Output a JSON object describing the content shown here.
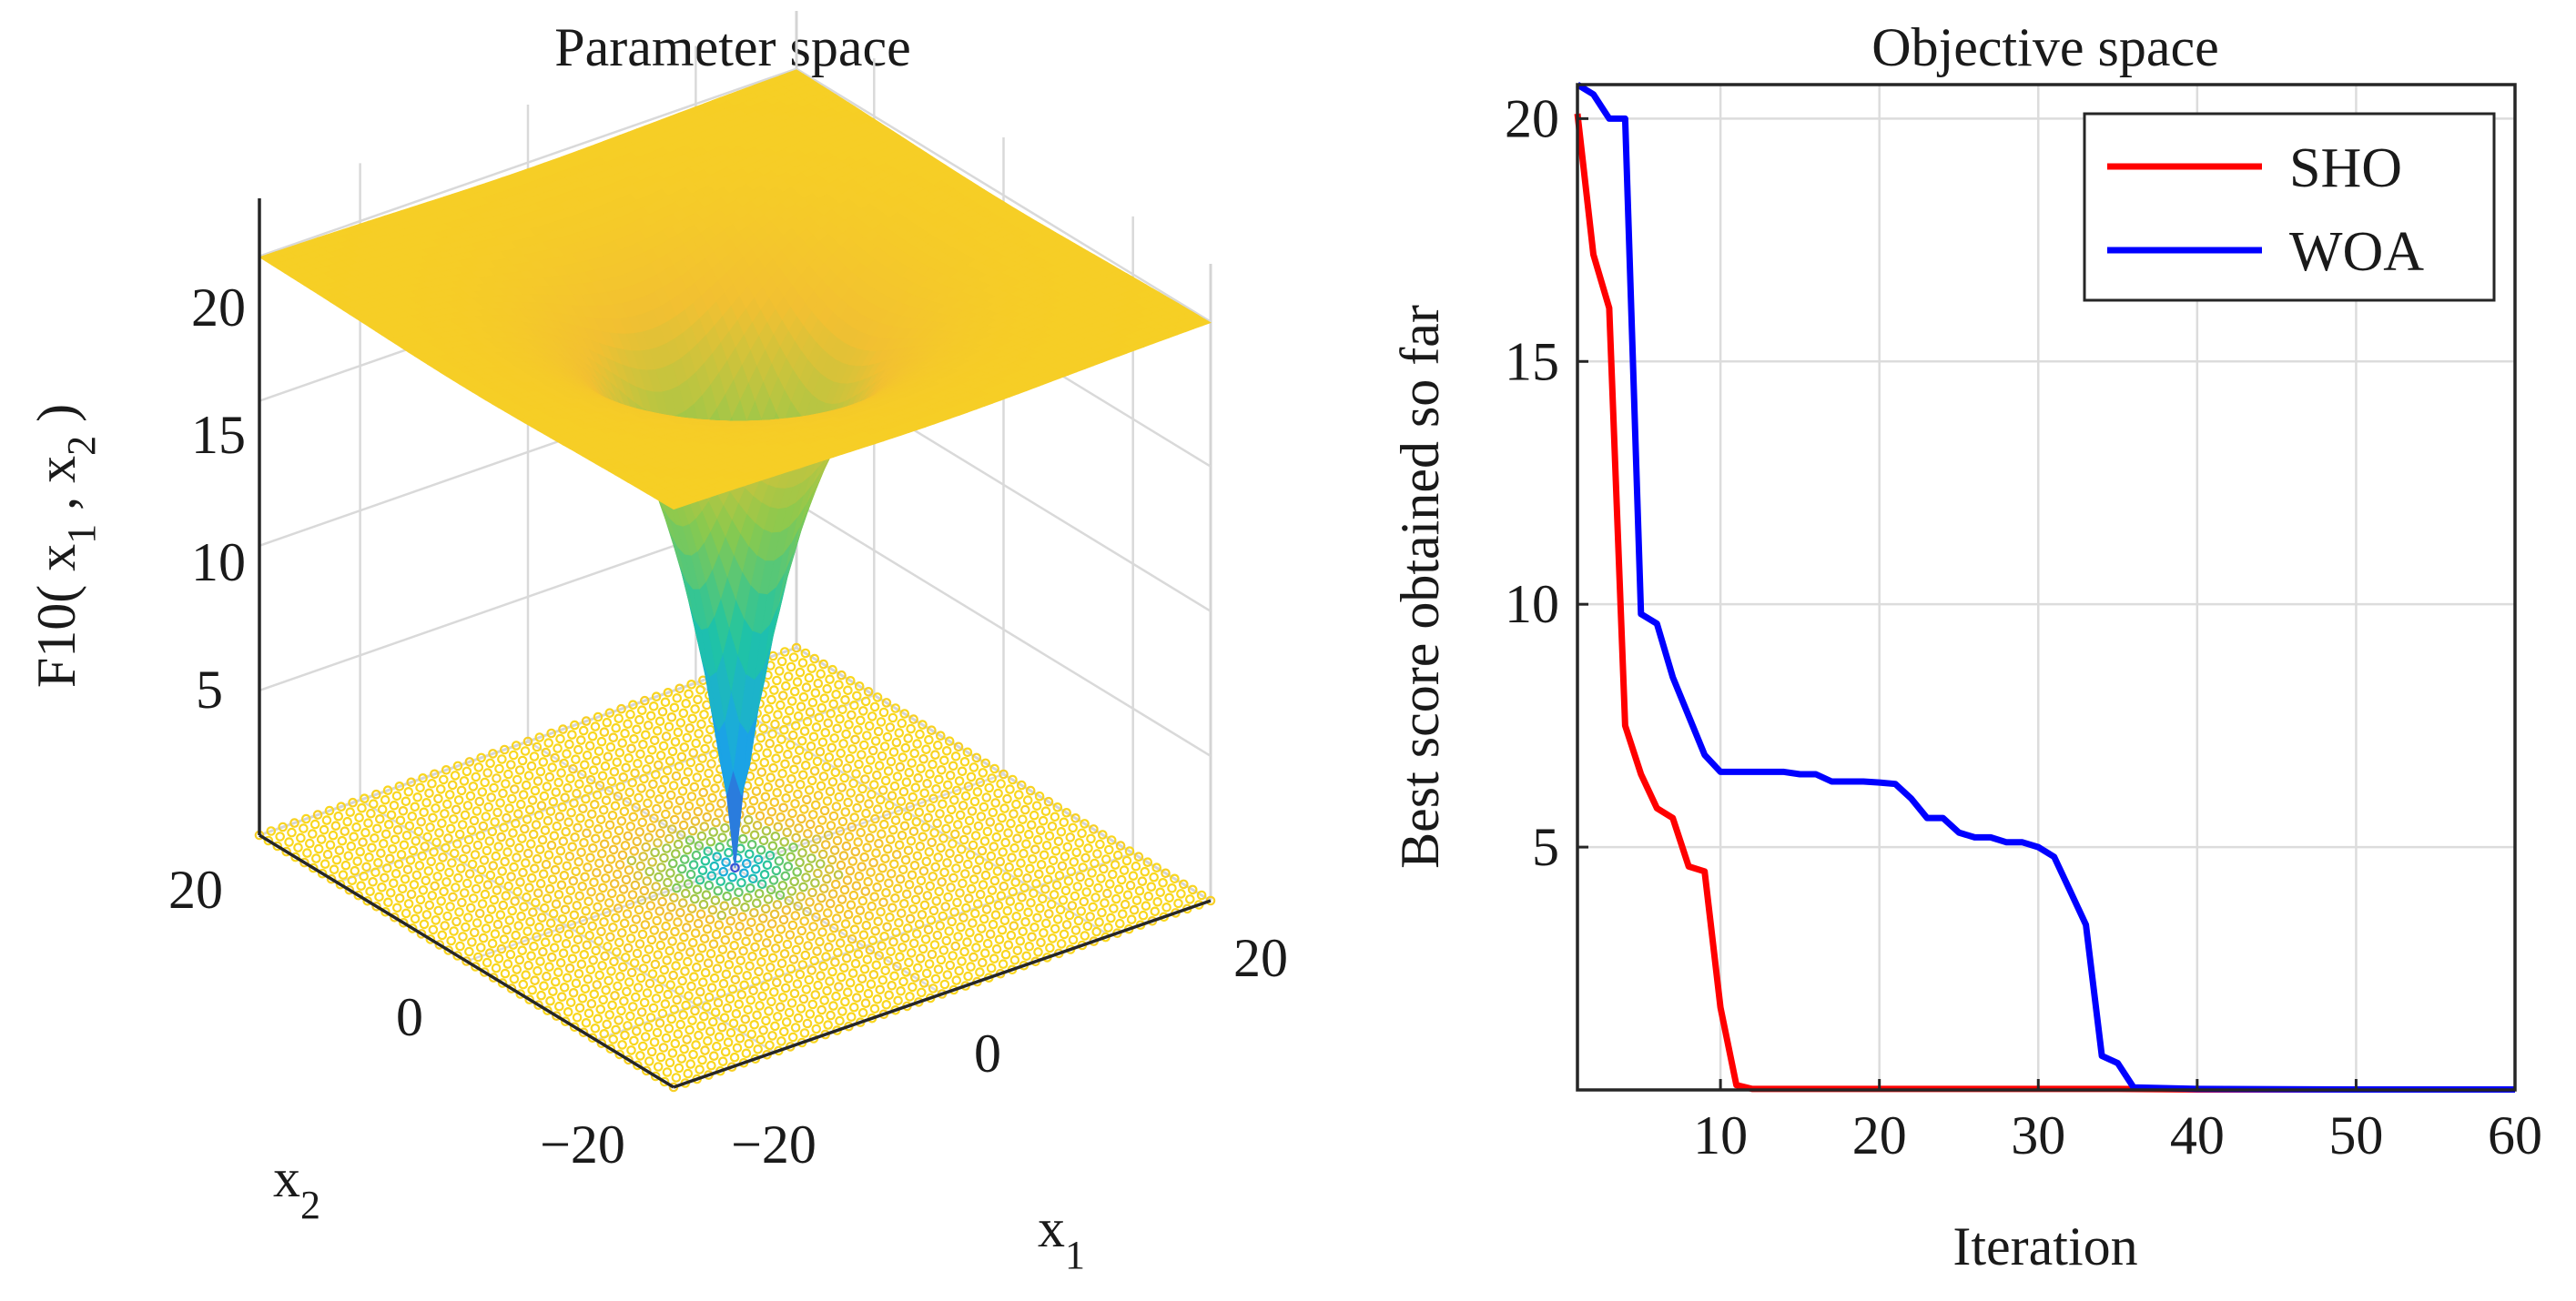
{
  "chart_data": [
    {
      "type": "surface",
      "title": "Parameter space",
      "function_label": "F10",
      "zlabel_prefix": "F10( x",
      "zlabel_sep": " , x",
      "zlabel_suffix": " )",
      "sub1": "1",
      "sub2": "2",
      "xlabel_base": "x",
      "xlabel_sub": "1",
      "ylabel_base": "x",
      "ylabel_sub": "2",
      "x_range": [
        -32,
        32
      ],
      "y_range": [
        -32,
        32
      ],
      "z_range": [
        0,
        22
      ],
      "xticks": [
        "−20",
        "0",
        "20"
      ],
      "yticks": [
        "−20",
        "0",
        "20"
      ],
      "zticks": [
        "5",
        "10",
        "15",
        "20"
      ],
      "colormap": [
        "#3b4fd4",
        "#1aa6e6",
        "#1fc4a4",
        "#8ac94e",
        "#f2c032",
        "#f9d71e"
      ]
    },
    {
      "type": "line",
      "title": "Objective space",
      "xlabel": "Iteration",
      "ylabel": "Best score obtained so far",
      "xlim": [
        1,
        60
      ],
      "ylim": [
        0,
        20.7
      ],
      "xticks": [
        "10",
        "20",
        "30",
        "40",
        "50",
        "60"
      ],
      "yticks": [
        "5",
        "10",
        "15",
        "20"
      ],
      "grid": true,
      "legend_position": "top-right",
      "series": [
        {
          "name": "SHO",
          "color": "#ff0000",
          "x": [
            1,
            2,
            3,
            4,
            5,
            6,
            7,
            8,
            9,
            10,
            11,
            12,
            15,
            20,
            25,
            30,
            35,
            40,
            50,
            60
          ],
          "y": [
            20.1,
            17.2,
            16.1,
            7.5,
            6.5,
            5.8,
            5.6,
            4.6,
            4.5,
            1.7,
            0.1,
            0.02,
            0.02,
            0.02,
            0.02,
            0.02,
            0.02,
            0.01,
            0.01,
            0.01
          ]
        },
        {
          "name": "WOA",
          "color": "#0000ff",
          "x": [
            1,
            2,
            3,
            4,
            5,
            6,
            7,
            8,
            9,
            10,
            11,
            12,
            13,
            14,
            15,
            16,
            17,
            18,
            19,
            20,
            21,
            22,
            23,
            24,
            25,
            26,
            27,
            28,
            29,
            30,
            31,
            32,
            33,
            34,
            35,
            36,
            40,
            50,
            60
          ],
          "y": [
            20.7,
            20.5,
            20.0,
            20.0,
            9.8,
            9.6,
            8.5,
            7.7,
            6.9,
            6.55,
            6.55,
            6.55,
            6.55,
            6.55,
            6.5,
            6.5,
            6.35,
            6.35,
            6.35,
            6.33,
            6.3,
            6.0,
            5.6,
            5.6,
            5.3,
            5.2,
            5.2,
            5.1,
            5.1,
            5.0,
            4.8,
            4.1,
            3.4,
            0.7,
            0.55,
            0.05,
            0.02,
            0.01,
            0.01
          ]
        }
      ]
    }
  ]
}
